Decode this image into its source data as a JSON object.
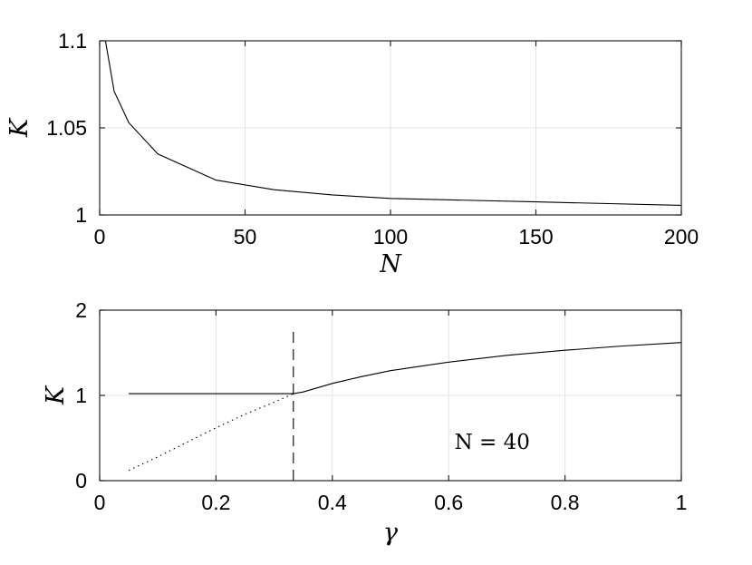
{
  "chart_data": [
    {
      "type": "line",
      "xlabel": "N",
      "ylabel": "K",
      "xlim": [
        0,
        200
      ],
      "ylim": [
        1,
        1.1
      ],
      "xticks": [
        "0",
        "50",
        "100",
        "150",
        "200"
      ],
      "yticks": [
        "1",
        "1.05",
        "1.1"
      ],
      "grid": true,
      "series": [
        {
          "style": "solid",
          "x": [
            2,
            5,
            10,
            20,
            40,
            60,
            80,
            100,
            150,
            200
          ],
          "y": [
            1.1,
            1.071,
            1.053,
            1.035,
            1.02,
            1.0145,
            1.0115,
            1.0095,
            1.0075,
            1.0055
          ]
        }
      ]
    },
    {
      "type": "line",
      "xlabel": "γ",
      "ylabel": "K",
      "xlim": [
        0,
        1
      ],
      "ylim": [
        0,
        2
      ],
      "xticks": [
        "0",
        "0.2",
        "0.4",
        "0.6",
        "0.8",
        "1"
      ],
      "yticks": [
        "0",
        "1",
        "2"
      ],
      "grid": true,
      "annotation": {
        "text": "N = 40",
        "x": 0.61,
        "y": 0.37
      },
      "vline": {
        "x": 0.333,
        "style": "dashed",
        "ylim": [
          0,
          1.8
        ]
      },
      "series": [
        {
          "style": "solid",
          "x": [
            0.05,
            0.1,
            0.2,
            0.3,
            0.333
          ],
          "y": [
            1.02,
            1.02,
            1.02,
            1.02,
            1.02
          ]
        },
        {
          "style": "solid",
          "x": [
            0.333,
            0.35,
            0.4,
            0.45,
            0.5,
            0.6,
            0.7,
            0.8,
            0.9,
            1.0
          ],
          "y": [
            1.02,
            1.04,
            1.14,
            1.22,
            1.29,
            1.39,
            1.47,
            1.53,
            1.58,
            1.62
          ]
        },
        {
          "style": "dotted",
          "x": [
            0.05,
            0.1,
            0.15,
            0.2,
            0.25,
            0.3,
            0.333
          ],
          "y": [
            0.12,
            0.28,
            0.45,
            0.62,
            0.78,
            0.92,
            1.02
          ]
        }
      ]
    }
  ]
}
